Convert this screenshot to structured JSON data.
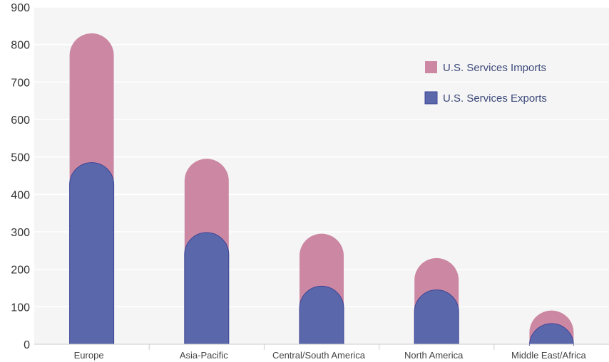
{
  "chart_data": {
    "type": "bar",
    "title": "",
    "xlabel": "",
    "ylabel": "",
    "categories": [
      "Europe",
      "Asia-Pacific",
      "Central/South America",
      "North America",
      "Middle East/Africa"
    ],
    "series": [
      {
        "name": "U.S. Services Imports",
        "values": [
          830,
          495,
          295,
          230,
          90
        ],
        "color": "#cc88a3"
      },
      {
        "name": "U.S. Services Exports",
        "values": [
          485,
          298,
          155,
          145,
          55
        ],
        "color": "#5b67ab"
      }
    ],
    "ylim": [
      0,
      900
    ],
    "yticks": [
      "0",
      "100",
      "200",
      "300",
      "400",
      "500",
      "600",
      "700",
      "800",
      "900"
    ],
    "grid": true,
    "legend_position": "top-right",
    "bar_style": "overlapping rounded-top columns"
  }
}
